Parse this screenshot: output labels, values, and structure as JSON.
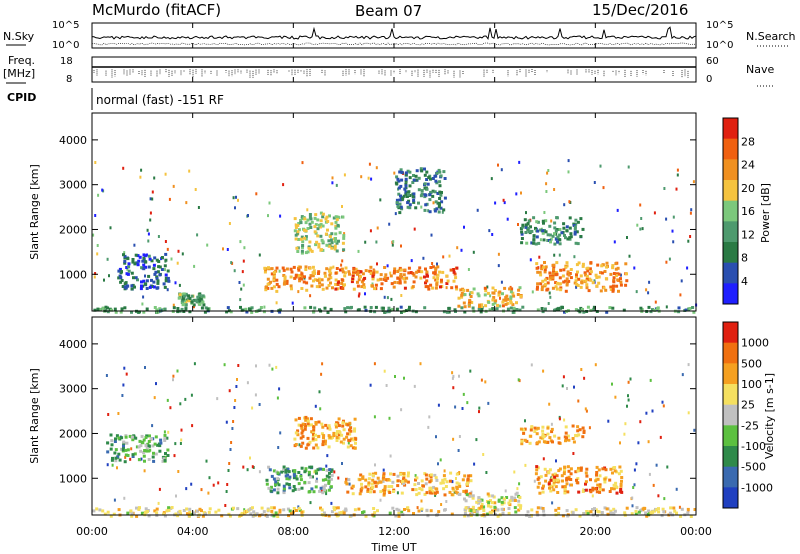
{
  "header": {
    "station": "McMurdo (fitACF)",
    "beam": "Beam 07",
    "date": "15/Dec/2016"
  },
  "noise_panel": {
    "left_label": "N.Sky",
    "right_label": "N.Search",
    "ticks_left": [
      "10^5",
      "10^0"
    ],
    "ticks_right": [
      "10^5",
      "10^0"
    ]
  },
  "freq_panel": {
    "left_label_1": "Freq.",
    "left_label_2": "[MHz]",
    "right_label": "Nave",
    "ticks_left": [
      "18",
      "8"
    ],
    "ticks_right": [
      "60",
      "0"
    ]
  },
  "cpid": {
    "label": "CPID",
    "text": "normal (fast) -151 RF"
  },
  "xaxis": {
    "title": "Time UT",
    "ticks": [
      "00:00",
      "04:00",
      "08:00",
      "12:00",
      "16:00",
      "20:00",
      "00:00"
    ]
  },
  "chart_data": [
    {
      "type": "heatmap",
      "title": "",
      "xlabel": "Time UT",
      "ylabel": "Slant Range [km]",
      "xlim": [
        0,
        24
      ],
      "ylim": [
        180,
        4600
      ],
      "yticks": [
        "4000",
        "3000",
        "2000",
        "1000"
      ],
      "colorbar": {
        "label": "Power [dB]",
        "range": [
          0,
          32
        ],
        "ticks": [
          "28",
          "24",
          "20",
          "16",
          "12",
          "8",
          "4"
        ],
        "colors": [
          "#1f1fff",
          "#2a4fb0",
          "#2a7a44",
          "#4e9a6e",
          "#7cc87c",
          "#f5c33f",
          "#f09020",
          "#f06010",
          "#e02010"
        ]
      },
      "regions": [
        {
          "t0": 0.0,
          "t1": 24.0,
          "r0": 180,
          "r1": 300,
          "level": 0.35
        },
        {
          "t0": 1.0,
          "t1": 3.0,
          "r0": 700,
          "r1": 1500,
          "level": 0.15
        },
        {
          "t0": 3.4,
          "t1": 4.4,
          "r0": 350,
          "r1": 600,
          "level": 0.4
        },
        {
          "t0": 6.8,
          "t1": 9.5,
          "r0": 650,
          "r1": 1200,
          "level": 0.75
        },
        {
          "t0": 8.0,
          "t1": 10.0,
          "r0": 1500,
          "r1": 2400,
          "level": 0.5
        },
        {
          "t0": 9.5,
          "t1": 14.5,
          "r0": 700,
          "r1": 1200,
          "level": 0.8
        },
        {
          "t0": 14.5,
          "t1": 17.0,
          "r0": 300,
          "r1": 750,
          "level": 0.65
        },
        {
          "t0": 17.6,
          "t1": 21.2,
          "r0": 650,
          "r1": 1300,
          "level": 0.75
        },
        {
          "t0": 17.0,
          "t1": 19.5,
          "r0": 1700,
          "r1": 2300,
          "level": 0.3
        },
        {
          "t0": 12.0,
          "t1": 14.0,
          "r0": 2400,
          "r1": 3400,
          "level": 0.25
        }
      ]
    },
    {
      "type": "heatmap",
      "title": "",
      "xlabel": "Time UT",
      "ylabel": "Slant Range [km]",
      "xlim": [
        0,
        24
      ],
      "ylim": [
        180,
        4600
      ],
      "yticks": [
        "4000",
        "3000",
        "2000",
        "1000"
      ],
      "colorbar": {
        "label": "Velocity [m s-1]",
        "range": [
          -1250,
          1250
        ],
        "ticks": [
          "1000",
          "500",
          "100",
          "25",
          "-25",
          "-100",
          "-500",
          "-1000"
        ],
        "colors": [
          "#2040c0",
          "#3a6ab0",
          "#2f8a4a",
          "#5cc040",
          "#c0c0c0",
          "#f5e060",
          "#f5a020",
          "#f07010",
          "#e02010"
        ]
      },
      "regions": [
        {
          "t0": 0.0,
          "t1": 24.0,
          "r0": 180,
          "r1": 380,
          "level": 0.6
        },
        {
          "t0": 0.5,
          "t1": 3.0,
          "r0": 1400,
          "r1": 2000,
          "level": 0.35
        },
        {
          "t0": 6.8,
          "t1": 9.5,
          "r0": 700,
          "r1": 1300,
          "level": 0.3
        },
        {
          "t0": 8.0,
          "t1": 10.5,
          "r0": 1700,
          "r1": 2400,
          "level": 0.75
        },
        {
          "t0": 10.0,
          "t1": 15.0,
          "r0": 650,
          "r1": 1150,
          "level": 0.72
        },
        {
          "t0": 14.5,
          "t1": 17.0,
          "r0": 300,
          "r1": 700,
          "level": 0.55
        },
        {
          "t0": 17.6,
          "t1": 21.0,
          "r0": 700,
          "r1": 1300,
          "level": 0.78
        },
        {
          "t0": 17.0,
          "t1": 19.5,
          "r0": 1800,
          "r1": 2200,
          "level": 0.75
        }
      ]
    }
  ]
}
